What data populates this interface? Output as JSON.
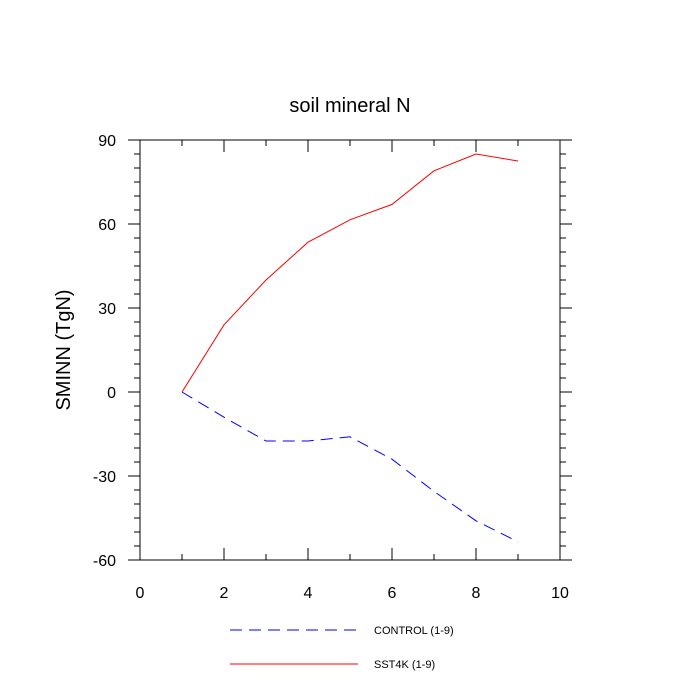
{
  "chart_data": {
    "type": "line",
    "title": "soil mineral N",
    "xlabel": "",
    "ylabel": "SMINN  (TgN)",
    "xlim": [
      0,
      10
    ],
    "ylim": [
      -60,
      90
    ],
    "xticks": [
      0,
      2,
      4,
      6,
      8,
      10
    ],
    "yticks": [
      -60,
      -30,
      0,
      30,
      60,
      90
    ],
    "x_minor_step": 1,
    "y_minor_step": 5,
    "grid": false,
    "legend_position": "bottom",
    "series": [
      {
        "name": "CONTROL (1-9)",
        "color": "#0000ff",
        "style": "dashed",
        "x": [
          1,
          2,
          3,
          4,
          5,
          6,
          7,
          8,
          9
        ],
        "values": [
          0,
          -9,
          -17.5,
          -17.5,
          -16,
          -24,
          -35.5,
          -46,
          -53.5
        ]
      },
      {
        "name": "SST4K (1-9)",
        "color": "#ff0000",
        "style": "solid",
        "x": [
          1,
          2,
          3,
          4,
          5,
          6,
          7,
          8,
          9
        ],
        "values": [
          0,
          24,
          40,
          53.5,
          61.5,
          67,
          79,
          85,
          82.5
        ]
      }
    ]
  }
}
